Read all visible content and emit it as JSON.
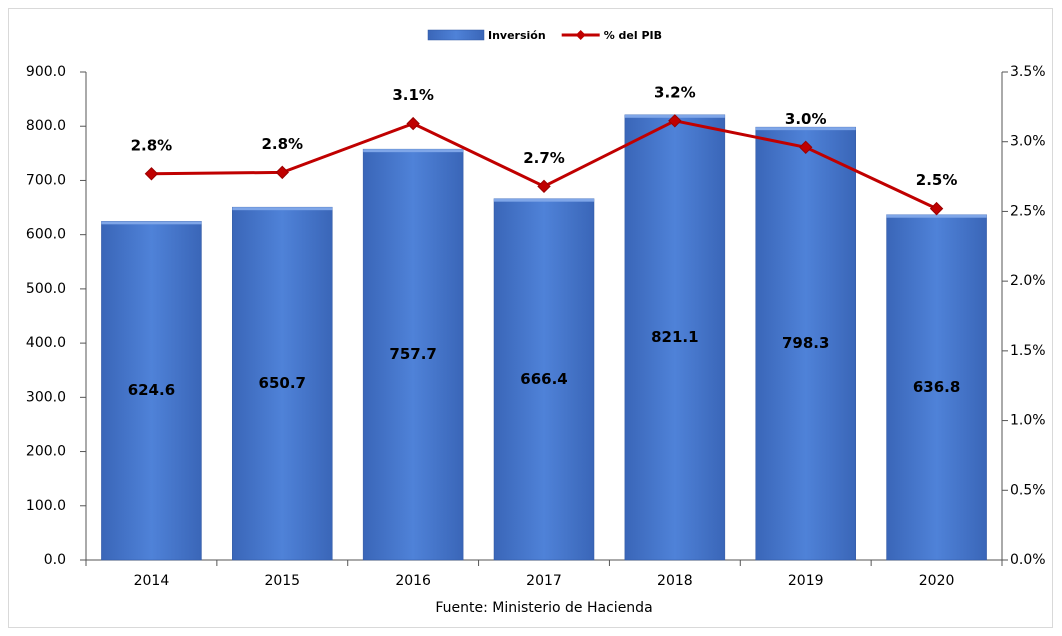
{
  "chart_data": {
    "type": "bar",
    "categories": [
      "2014",
      "2015",
      "2016",
      "2017",
      "2018",
      "2019",
      "2020"
    ],
    "series": [
      {
        "name": "Inversión",
        "type": "bar",
        "color": "#4a7bd2",
        "values": [
          624.6,
          650.7,
          757.7,
          666.4,
          821.1,
          798.3,
          636.8
        ]
      },
      {
        "name": "% del PIB",
        "type": "line",
        "axis": "y2",
        "color": "#c00000",
        "values": [
          2.77,
          2.78,
          3.13,
          2.68,
          3.15,
          2.96,
          2.52
        ],
        "value_labels": [
          "2.8%",
          "2.8%",
          "3.1%",
          "2.7%",
          "3.2%",
          "3.0%",
          "2.5%"
        ]
      }
    ],
    "ylim": [
      0,
      900
    ],
    "yticks": [
      {
        "value": 0,
        "label": "0.0"
      },
      {
        "value": 100,
        "label": "100.0"
      },
      {
        "value": 200,
        "label": "200.0"
      },
      {
        "value": 300,
        "label": "300.0"
      },
      {
        "value": 400,
        "label": "400.0"
      },
      {
        "value": 500,
        "label": "500.0"
      },
      {
        "value": 600,
        "label": "600.0"
      },
      {
        "value": 700,
        "label": "700.0"
      },
      {
        "value": 800,
        "label": "800.0"
      },
      {
        "value": 900,
        "label": "900.0"
      }
    ],
    "y2lim": [
      0,
      3.5
    ],
    "y2ticks": [
      {
        "value": 0,
        "label": "0.0%"
      },
      {
        "value": 0.5,
        "label": "0.5%"
      },
      {
        "value": 1,
        "label": "1.0%"
      },
      {
        "value": 1.5,
        "label": "1.5%"
      },
      {
        "value": 2,
        "label": "2.0%"
      },
      {
        "value": 2.5,
        "label": "2.5%"
      },
      {
        "value": 3,
        "label": "3.0%"
      },
      {
        "value": 3.5,
        "label": "3.5%"
      }
    ],
    "legend": "top",
    "source": "Fuente: Ministerio de Hacienda"
  }
}
